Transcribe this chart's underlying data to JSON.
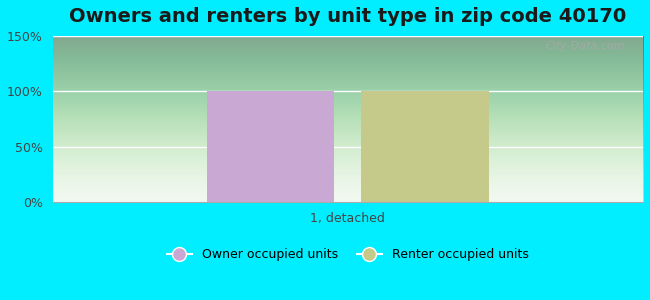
{
  "title": "Owners and renters by unit type in zip code 40170",
  "categories": [
    "1, detached"
  ],
  "owner_values": [
    100
  ],
  "renter_values": [
    100
  ],
  "owner_color": "#c9a8d4",
  "renter_color": "#c5c98a",
  "ylim": [
    0,
    150
  ],
  "yticks": [
    0,
    50,
    100,
    150
  ],
  "ytick_labels": [
    "0%",
    "50%",
    "100%",
    "150%"
  ],
  "xlabel": "1, detached",
  "bg_color": "#00eeff",
  "legend_owner": "Owner occupied units",
  "legend_renter": "Renter occupied units",
  "watermark": "City-Data.com",
  "title_fontsize": 14,
  "bar_width": 0.28
}
